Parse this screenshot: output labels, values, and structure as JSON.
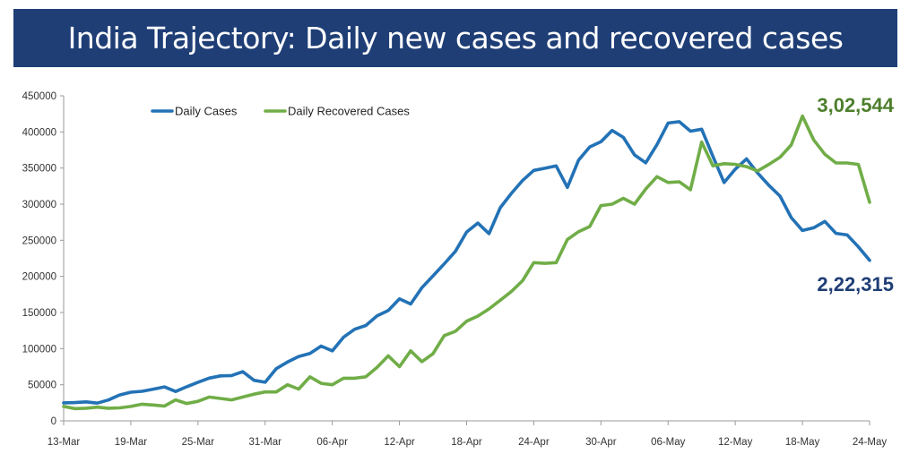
{
  "header": {
    "title": "India Trajectory: Daily new cases and recovered cases"
  },
  "chart_data": {
    "type": "line",
    "title": "India Trajectory: Daily new cases and recovered cases",
    "xlabel": "",
    "ylabel": "",
    "ylim": [
      0,
      450000
    ],
    "yticks": [
      0,
      50000,
      100000,
      150000,
      200000,
      250000,
      300000,
      350000,
      400000,
      450000
    ],
    "xlim": [
      0,
      72
    ],
    "x_ticks": [
      {
        "label": "13-Mar",
        "index": 0
      },
      {
        "label": "19-Mar",
        "index": 6
      },
      {
        "label": "25-Mar",
        "index": 12
      },
      {
        "label": "31-Mar",
        "index": 18
      },
      {
        "label": "06-Apr",
        "index": 24
      },
      {
        "label": "12-Apr",
        "index": 30
      },
      {
        "label": "18-Apr",
        "index": 36
      },
      {
        "label": "24-Apr",
        "index": 42
      },
      {
        "label": "30-Apr",
        "index": 48
      },
      {
        "label": "06-May",
        "index": 54
      },
      {
        "label": "12-May",
        "index": 60
      },
      {
        "label": "18-May",
        "index": 66
      },
      {
        "label": "24-May",
        "index": 72
      }
    ],
    "legend_position": "top-left",
    "series": [
      {
        "name": "Daily Cases",
        "color": "#2372b6",
        "end_label": "2,22,315",
        "end_label_color": "#1f3e76",
        "values": [
          24882,
          25320,
          26291,
          24492,
          28903,
          35871,
          39726,
          40953,
          43846,
          46951,
          40715,
          47262,
          53476,
          59118,
          62258,
          62714,
          68020,
          56211,
          53480,
          72330,
          81466,
          89129,
          93249,
          103558,
          96982,
          115736,
          126789,
          131968,
          145384,
          152879,
          168912,
          161736,
          184372,
          200739,
          217353,
          234692,
          261500,
          273810,
          259170,
          295041,
          314835,
          332730,
          346786,
          349691,
          352991,
          323144,
          360960,
          379257,
          386452,
          401993,
          392488,
          368147,
          357229,
          382315,
          412262,
          414188,
          401078,
          403738,
          366161,
          329942,
          348421,
          362727,
          343144,
          326098,
          311170,
          281386,
          263533,
          267334,
          276070,
          259551,
          257299,
          240842,
          222315
        ]
      },
      {
        "name": "Daily Recovered Cases",
        "color": "#70ad47",
        "end_label": "3,02,544",
        "end_label_color": "#4e7f2d",
        "values": [
          20000,
          17000,
          17500,
          19000,
          17500,
          18000,
          20000,
          23000,
          22000,
          20500,
          29000,
          24000,
          27000,
          33000,
          31000,
          29000,
          33000,
          37000,
          40000,
          40000,
          50000,
          44000,
          61000,
          52000,
          50000,
          59000,
          59000,
          61000,
          74000,
          90000,
          75000,
          97000,
          82000,
          93000,
          118000,
          124000,
          138000,
          145000,
          155000,
          167000,
          179000,
          194000,
          219000,
          218000,
          219000,
          251000,
          262000,
          269000,
          298000,
          300000,
          308000,
          300000,
          321000,
          338000,
          330000,
          331000,
          320000,
          386000,
          353000,
          356000,
          355000,
          352000,
          346000,
          355000,
          365000,
          382000,
          422000,
          389000,
          369000,
          357000,
          357000,
          355000,
          302544
        ]
      }
    ]
  }
}
